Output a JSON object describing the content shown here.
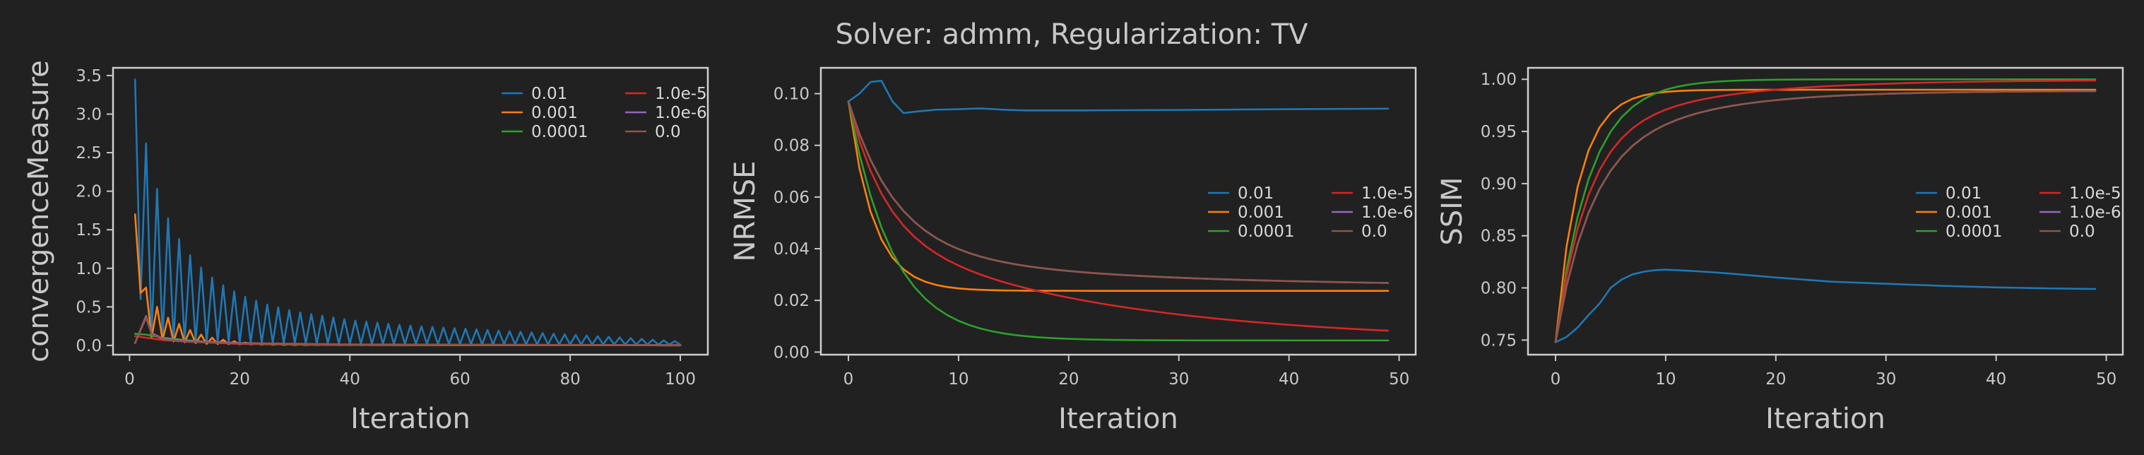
{
  "figure": {
    "suptitle": "Solver: admm, Regularization: TV",
    "background": "#212121",
    "text_color": "#c8c8c8"
  },
  "chart_data": [
    {
      "type": "line",
      "xlabel": "Iteration",
      "ylabel": "convergenceMeasure",
      "xlim": [
        -3,
        105
      ],
      "ylim": [
        -0.12,
        3.6
      ],
      "xticks": [
        0,
        20,
        40,
        60,
        80,
        100
      ],
      "yticks": [
        0.0,
        0.5,
        1.0,
        1.5,
        2.0,
        2.5,
        3.0,
        3.5
      ],
      "ytick_labels": [
        "0.0",
        "0.5",
        "1.0",
        "1.5",
        "2.0",
        "2.5",
        "3.0",
        "3.5"
      ],
      "grid": false,
      "legend": {
        "placement": "top-right",
        "columns": 2
      },
      "series": [
        {
          "name": "0.01",
          "color": "#1f77b4",
          "x_start": 1,
          "x_end": 100,
          "generator": "oscillating",
          "peaks": [
            [
              1,
              3.45
            ],
            [
              3,
              2.62
            ],
            [
              5,
              2.03
            ],
            [
              7,
              1.65
            ],
            [
              9,
              1.38
            ],
            [
              11,
              1.17
            ],
            [
              13,
              1.01
            ],
            [
              15,
              0.88
            ],
            [
              17,
              0.78
            ],
            [
              19,
              0.7
            ],
            [
              21,
              0.63
            ],
            [
              25,
              0.53
            ],
            [
              30,
              0.44
            ],
            [
              40,
              0.33
            ],
            [
              50,
              0.26
            ],
            [
              60,
              0.22
            ],
            [
              70,
              0.18
            ],
            [
              80,
              0.14
            ],
            [
              90,
              0.1
            ],
            [
              100,
              0.05
            ]
          ],
          "troughs": [
            [
              2,
              0.6
            ],
            [
              4,
              0.12
            ],
            [
              10,
              0.06
            ],
            [
              20,
              0.04
            ],
            [
              40,
              0.02
            ],
            [
              100,
              0.01
            ]
          ]
        },
        {
          "name": "0.001",
          "color": "#ff7f0e",
          "x_start": 1,
          "x_end": 100,
          "generator": "oscillating",
          "peaks": [
            [
              1,
              1.7
            ],
            [
              3,
              0.75
            ],
            [
              5,
              0.5
            ],
            [
              7,
              0.36
            ],
            [
              9,
              0.28
            ],
            [
              11,
              0.2
            ],
            [
              13,
              0.14
            ],
            [
              15,
              0.1
            ],
            [
              18,
              0.06
            ],
            [
              22,
              0.03
            ],
            [
              30,
              0.012
            ],
            [
              50,
              0.005
            ],
            [
              100,
              0.002
            ]
          ],
          "troughs": [
            [
              2,
              0.68
            ],
            [
              4,
              0.1
            ],
            [
              8,
              0.05
            ],
            [
              14,
              0.02
            ],
            [
              30,
              0.005
            ],
            [
              100,
              0.001
            ]
          ]
        },
        {
          "name": "0.0001",
          "color": "#2ca02c",
          "x_start": 1,
          "x_end": 100,
          "generator": "decay",
          "points": [
            [
              1,
              0.15
            ],
            [
              3,
              0.14
            ],
            [
              6,
              0.1
            ],
            [
              10,
              0.07
            ],
            [
              15,
              0.04
            ],
            [
              25,
              0.015
            ],
            [
              40,
              0.005
            ],
            [
              100,
              0.001
            ]
          ]
        },
        {
          "name": "1.0e-5",
          "color": "#d62728",
          "x_start": 1,
          "x_end": 100,
          "generator": "decay",
          "points": [
            [
              1,
              0.12
            ],
            [
              3,
              0.1
            ],
            [
              6,
              0.07
            ],
            [
              10,
              0.05
            ],
            [
              20,
              0.02
            ],
            [
              40,
              0.008
            ],
            [
              100,
              0.002
            ]
          ]
        },
        {
          "name": "1.0e-6",
          "color": "#9467bd",
          "x_start": 1,
          "x_end": 100,
          "generator": "decay",
          "points": [
            [
              1,
              0.03
            ],
            [
              3,
              0.38
            ],
            [
              4,
              0.16
            ],
            [
              6,
              0.09
            ],
            [
              10,
              0.06
            ],
            [
              20,
              0.03
            ],
            [
              40,
              0.012
            ],
            [
              100,
              0.004
            ]
          ]
        },
        {
          "name": "0.0",
          "color": "#8c564b",
          "x_start": 1,
          "x_end": 100,
          "generator": "decay",
          "points": [
            [
              1,
              0.03
            ],
            [
              3,
              0.36
            ],
            [
              4,
              0.15
            ],
            [
              6,
              0.08
            ],
            [
              10,
              0.05
            ],
            [
              20,
              0.025
            ],
            [
              40,
              0.01
            ],
            [
              100,
              0.003
            ]
          ]
        }
      ]
    },
    {
      "type": "line",
      "xlabel": "Iteration",
      "ylabel": "NRMSE",
      "xlim": [
        -2.5,
        51.5
      ],
      "ylim": [
        -0.001,
        0.11
      ],
      "xticks": [
        0,
        10,
        20,
        30,
        40,
        50
      ],
      "yticks": [
        0.0,
        0.02,
        0.04,
        0.06,
        0.08,
        0.1
      ],
      "ytick_labels": [
        "0.00",
        "0.02",
        "0.04",
        "0.06",
        "0.08",
        "0.10"
      ],
      "grid": false,
      "legend": {
        "placement": "center-right",
        "columns": 2
      },
      "series": [
        {
          "name": "0.01",
          "color": "#1f77b4",
          "x_start": 0,
          "x_end": 49,
          "generator": "interp",
          "points": [
            [
              0,
              0.097
            ],
            [
              1,
              0.1
            ],
            [
              2,
              0.1045
            ],
            [
              3,
              0.105
            ],
            [
              4,
              0.097
            ],
            [
              5,
              0.0925
            ],
            [
              6,
              0.093
            ],
            [
              8,
              0.0938
            ],
            [
              10,
              0.094
            ],
            [
              12,
              0.0943
            ],
            [
              14,
              0.0938
            ],
            [
              16,
              0.0935
            ],
            [
              20,
              0.0935
            ],
            [
              30,
              0.0937
            ],
            [
              40,
              0.094
            ],
            [
              49,
              0.0942
            ]
          ]
        },
        {
          "name": "0.001",
          "color": "#ff7f0e",
          "x_start": 0,
          "x_end": 49,
          "generator": "expdecay",
          "start": 0.097,
          "end": 0.0237,
          "tau": 2.3
        },
        {
          "name": "0.0001",
          "color": "#2ca02c",
          "x_start": 0,
          "x_end": 49,
          "generator": "expdecay",
          "start": 0.097,
          "end": 0.0045,
          "tau": 4.0
        },
        {
          "name": "1.0e-5",
          "color": "#d62728",
          "x_start": 0,
          "x_end": 49,
          "generator": "twodecay",
          "start": 0.097,
          "end": 0.004,
          "fast": {
            "amp": 0.049,
            "tau": 3.2
          },
          "slow": {
            "amp": 0.044,
            "tau": 21.0
          }
        },
        {
          "name": "1.0e-6",
          "color": "#9467bd",
          "x_start": 0,
          "x_end": 49,
          "generator": "twodecay",
          "start": 0.097,
          "end": 0.0255,
          "fast": {
            "amp": 0.057,
            "tau": 4.3
          },
          "slow": {
            "amp": 0.0145,
            "tau": 20.0
          }
        },
        {
          "name": "0.0",
          "color": "#8c564b",
          "x_start": 0,
          "x_end": 49,
          "generator": "twodecay",
          "start": 0.097,
          "end": 0.0255,
          "fast": {
            "amp": 0.057,
            "tau": 4.3
          },
          "slow": {
            "amp": 0.0145,
            "tau": 20.0
          }
        }
      ]
    },
    {
      "type": "line",
      "xlabel": "Iteration",
      "ylabel": "SSIM",
      "xlim": [
        -2.5,
        51.5
      ],
      "ylim": [
        0.736,
        1.011
      ],
      "xticks": [
        0,
        10,
        20,
        30,
        40,
        50
      ],
      "yticks": [
        0.75,
        0.8,
        0.85,
        0.9,
        0.95,
        1.0
      ],
      "ytick_labels": [
        "0.75",
        "0.80",
        "0.85",
        "0.90",
        "0.95",
        "1.00"
      ],
      "grid": false,
      "legend": {
        "placement": "center-right",
        "columns": 2
      },
      "series": [
        {
          "name": "0.01",
          "color": "#1f77b4",
          "x_start": 0,
          "x_end": 49,
          "generator": "interp",
          "points": [
            [
              0,
              0.748
            ],
            [
              1,
              0.753
            ],
            [
              2,
              0.762
            ],
            [
              3,
              0.774
            ],
            [
              4,
              0.785
            ],
            [
              5,
              0.8
            ],
            [
              6,
              0.808
            ],
            [
              7,
              0.813
            ],
            [
              8,
              0.8155
            ],
            [
              9,
              0.817
            ],
            [
              10,
              0.8175
            ],
            [
              12,
              0.8165
            ],
            [
              15,
              0.8145
            ],
            [
              20,
              0.81
            ],
            [
              25,
              0.806
            ],
            [
              30,
              0.804
            ],
            [
              35,
              0.802
            ],
            [
              40,
              0.8005
            ],
            [
              45,
              0.7995
            ],
            [
              49,
              0.799
            ]
          ]
        },
        {
          "name": "0.001",
          "color": "#ff7f0e",
          "x_start": 0,
          "x_end": 49,
          "generator": "expdecay",
          "start": 0.748,
          "end": 0.99,
          "tau": 2.1
        },
        {
          "name": "0.0001",
          "color": "#2ca02c",
          "x_start": 0,
          "x_end": 49,
          "generator": "expdecay",
          "start": 0.748,
          "end": 1.0,
          "tau": 3.1
        },
        {
          "name": "1.0e-5",
          "color": "#d62728",
          "x_start": 0,
          "x_end": 49,
          "generator": "twodecay",
          "start": 0.748,
          "end": 0.9995,
          "fast": {
            "amp": -0.194,
            "tau": 2.8
          },
          "slow": {
            "amp": -0.0575,
            "tau": 11.0
          }
        },
        {
          "name": "1.0e-6",
          "color": "#9467bd",
          "x_start": 0,
          "x_end": 49,
          "generator": "twodecay",
          "start": 0.748,
          "end": 0.989,
          "fast": {
            "amp": -0.16,
            "tau": 3.0
          },
          "slow": {
            "amp": -0.081,
            "tau": 9.0
          }
        },
        {
          "name": "0.0",
          "color": "#8c564b",
          "x_start": 0,
          "x_end": 49,
          "generator": "twodecay",
          "start": 0.748,
          "end": 0.989,
          "fast": {
            "amp": -0.16,
            "tau": 3.0
          },
          "slow": {
            "amp": -0.081,
            "tau": 9.0
          }
        }
      ]
    }
  ]
}
